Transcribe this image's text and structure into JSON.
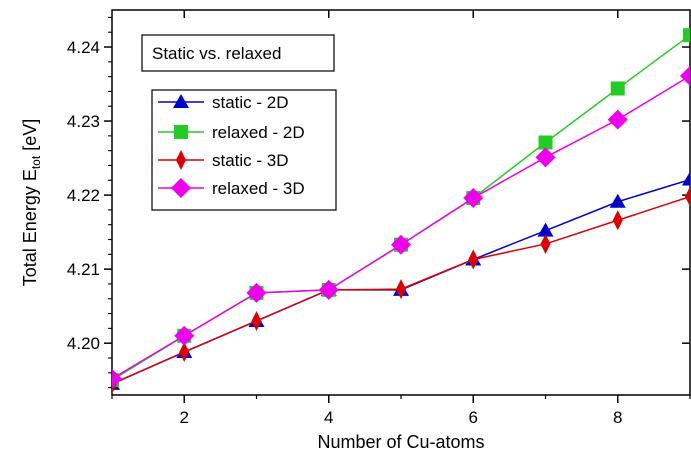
{
  "chart_data": {
    "type": "line",
    "title": "",
    "annotation": "Static vs. relaxed",
    "xlabel": "Number of Cu-atoms",
    "ylabel_main": "Total Energy E",
    "ylabel_sub": "tot",
    "ylabel_unit": " [eV]",
    "xlim": [
      1,
      9
    ],
    "ylim": [
      4.193,
      4.245
    ],
    "xticks": [
      2,
      4,
      6,
      8
    ],
    "xtick_labels": [
      "2",
      "4",
      "6",
      "8"
    ],
    "yticks": [
      4.2,
      4.21,
      4.22,
      4.23,
      4.24
    ],
    "ytick_labels": [
      "4.20",
      "4.21",
      "4.22",
      "4.23",
      "4.24"
    ],
    "grid": false,
    "legend_position": "upper-left",
    "series": [
      {
        "name": "static - 2D",
        "color": "#0000cc",
        "marker": "triangle",
        "x": [
          1,
          2,
          3,
          4,
          5,
          6,
          7,
          8,
          9
        ],
        "y": [
          4.1945,
          4.1988,
          4.203,
          4.2072,
          4.2072,
          4.2113,
          4.2152,
          4.2191,
          4.2221
        ]
      },
      {
        "name": "relaxed - 2D",
        "color": "#22cc22",
        "marker": "square",
        "x": [
          1,
          2,
          3,
          4,
          5,
          6,
          7,
          8,
          9
        ],
        "y": [
          4.195,
          4.201,
          4.2068,
          4.2072,
          4.2133,
          4.2196,
          4.2271,
          4.2344,
          4.2416
        ]
      },
      {
        "name": "static - 3D",
        "color": "#dd0000",
        "marker": "diamond-thin",
        "x": [
          1,
          2,
          3,
          4,
          5,
          6,
          7,
          8,
          9
        ],
        "y": [
          4.1945,
          4.1988,
          4.203,
          4.2072,
          4.2073,
          4.2113,
          4.2134,
          4.2166,
          4.2198
        ]
      },
      {
        "name": "relaxed - 3D",
        "color": "#ee00ee",
        "marker": "diamond",
        "x": [
          1,
          2,
          3,
          4,
          5,
          6,
          7,
          8,
          9
        ],
        "y": [
          4.1952,
          4.201,
          4.2068,
          4.2072,
          4.2133,
          4.2196,
          4.2251,
          4.2302,
          4.2361
        ]
      }
    ]
  }
}
